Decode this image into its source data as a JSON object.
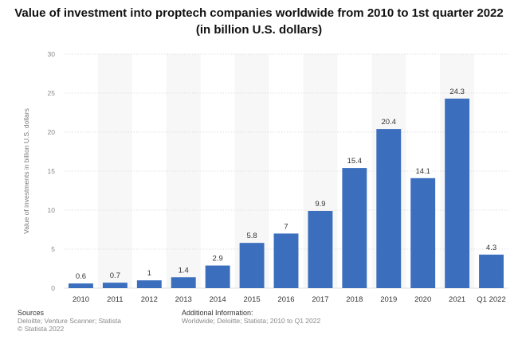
{
  "header": {
    "title_line1": "Value of investment into proptech companies worldwide from 2010 to 1st quarter 2022",
    "title_line2": "(in billion U.S. dollars)"
  },
  "chart_data": {
    "type": "bar",
    "categories": [
      "2010",
      "2011",
      "2012",
      "2013",
      "2014",
      "2015",
      "2016",
      "2017",
      "2018",
      "2019",
      "2020",
      "2021",
      "Q1 2022"
    ],
    "values": [
      0.6,
      0.7,
      1,
      1.4,
      2.9,
      5.8,
      7,
      9.9,
      15.4,
      20.4,
      14.1,
      24.3,
      4.3
    ],
    "value_labels": [
      "0.6",
      "0.7",
      "1",
      "1.4",
      "2.9",
      "5.8",
      "7",
      "9.9",
      "15.4",
      "20.4",
      "14.1",
      "24.3",
      "4.3"
    ],
    "ylabel": "Value of investments in billion U.S. dollars",
    "ylim": [
      0,
      30
    ],
    "yticks": [
      0,
      5,
      10,
      15,
      20,
      25,
      30
    ],
    "grid": true,
    "bar_color": "#3b6fbd"
  },
  "footer": {
    "sources_heading": "Sources",
    "sources_line1": "Deloitte; Venture Scanner; Statista",
    "sources_line2": "© Statista 2022",
    "info_heading": "Additional Information:",
    "info_line1": "Worldwide; Deloitte; Statista; 2010 to Q1 2022"
  }
}
